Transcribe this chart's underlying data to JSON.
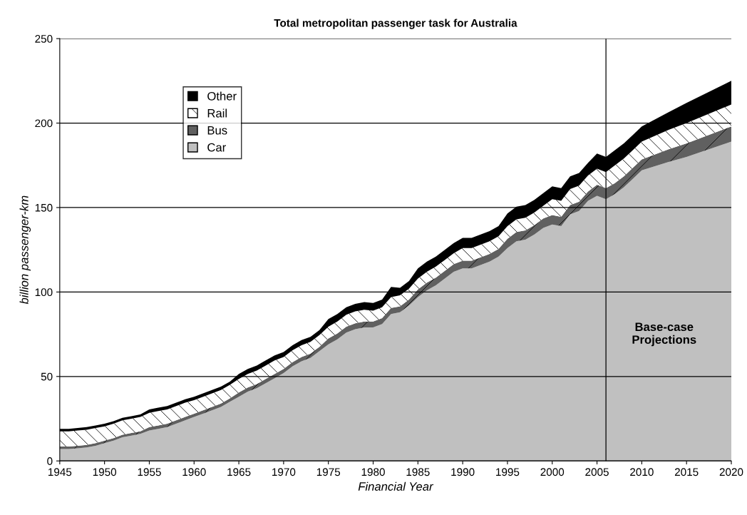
{
  "chart_data": {
    "type": "area",
    "title": "Total metropolitan passenger task for Australia",
    "xlabel": "Financial Year",
    "ylabel": "billion passenger-km",
    "stacked": true,
    "x": [
      1945,
      1946,
      1947,
      1948,
      1949,
      1950,
      1951,
      1952,
      1953,
      1954,
      1955,
      1956,
      1957,
      1958,
      1959,
      1960,
      1961,
      1962,
      1963,
      1964,
      1965,
      1966,
      1967,
      1968,
      1969,
      1970,
      1971,
      1972,
      1973,
      1974,
      1975,
      1976,
      1977,
      1978,
      1979,
      1980,
      1981,
      1982,
      1983,
      1984,
      1985,
      1986,
      1987,
      1988,
      1989,
      1990,
      1991,
      1992,
      1993,
      1994,
      1995,
      1996,
      1997,
      1998,
      1999,
      2000,
      2001,
      2002,
      2003,
      2004,
      2005,
      2006,
      2007,
      2008,
      2009,
      2010,
      2013,
      2015,
      2020
    ],
    "series": [
      {
        "name": "Car",
        "color": "#c0c0c0",
        "values": [
          7,
          7,
          7.5,
          8,
          9,
          10.5,
          12,
          14,
          15,
          16,
          18,
          19,
          20,
          22,
          24,
          26,
          28,
          30,
          32,
          35,
          38,
          41,
          43,
          46,
          49,
          52,
          56,
          59,
          61,
          65,
          69,
          72,
          76,
          78,
          79,
          79,
          81,
          87,
          88,
          92,
          97,
          101,
          104,
          108,
          112,
          114,
          114,
          116,
          118,
          121,
          126,
          130,
          131,
          134,
          138,
          140,
          139,
          146,
          148,
          154,
          157,
          155,
          158,
          162,
          167,
          172,
          177,
          180,
          189
        ]
      },
      {
        "name": "Bus",
        "color": "#606060",
        "values": [
          1.5,
          1.5,
          1.5,
          1.5,
          1.5,
          1.5,
          1.5,
          1.5,
          1.5,
          1.5,
          2,
          2,
          2,
          2,
          2,
          2,
          2,
          2,
          2,
          2,
          2.5,
          2.5,
          2.5,
          2.5,
          2.5,
          2.5,
          2.5,
          2.5,
          2.5,
          2.5,
          3.5,
          3.5,
          3.5,
          3.5,
          3.5,
          3.5,
          3.5,
          3.5,
          3.5,
          3.5,
          4.5,
          4.5,
          4.5,
          4.5,
          4.5,
          4.5,
          4.5,
          4.5,
          4.5,
          4.5,
          5.5,
          5.5,
          5.5,
          5.5,
          5.5,
          5.5,
          5.5,
          5.5,
          5.5,
          5.5,
          6.5,
          6.5,
          6.5,
          6.5,
          6.5,
          6.5,
          7.5,
          8,
          9
        ]
      },
      {
        "name": "Rail",
        "color": "#ffffff",
        "values": [
          9,
          9,
          9,
          9,
          9,
          8.5,
          8.5,
          8.5,
          8.5,
          8.5,
          8.5,
          8.5,
          8.5,
          8.5,
          8.5,
          8,
          8,
          8,
          8,
          8,
          8,
          8,
          8,
          8,
          8,
          7,
          7,
          7,
          7,
          7,
          7,
          7,
          7,
          7,
          7,
          6.5,
          6.5,
          6.5,
          6.5,
          6.5,
          6.5,
          6.5,
          6.5,
          6.5,
          6.5,
          7.5,
          7.5,
          7.5,
          7.5,
          7.5,
          7.5,
          7.5,
          7.5,
          7.5,
          7.5,
          9.5,
          9.5,
          9.5,
          9.5,
          9.5,
          9.5,
          9.5,
          10.5,
          10.5,
          10.5,
          10.5,
          11.5,
          12,
          13
        ]
      },
      {
        "name": "Other",
        "color": "#000000",
        "values": [
          1.5,
          1.5,
          1.5,
          1.5,
          1.5,
          1.5,
          1.5,
          1.5,
          1.5,
          1.5,
          2,
          2,
          2,
          2,
          2,
          2,
          2,
          2,
          2,
          2,
          3,
          3,
          3,
          3,
          3,
          3,
          3,
          3,
          3,
          3,
          4.5,
          4.5,
          4.5,
          4.5,
          4.5,
          4.5,
          4.5,
          6,
          4.5,
          4.5,
          6,
          6,
          6,
          6,
          6,
          6,
          6,
          6,
          6,
          6,
          7.5,
          7.5,
          7.5,
          7.5,
          7.5,
          7.5,
          7.5,
          7.5,
          7.5,
          7.5,
          9,
          9,
          9,
          9,
          9,
          9,
          10.5,
          12,
          14
        ]
      }
    ],
    "xlim": [
      1945,
      2020
    ],
    "xticks": [
      1945,
      1950,
      1955,
      1960,
      1965,
      1970,
      1975,
      1980,
      1985,
      1990,
      1995,
      2000,
      2005,
      2010,
      2015,
      2020
    ],
    "ylim": [
      0,
      250
    ],
    "yticks": [
      0,
      50,
      100,
      150,
      200,
      250
    ],
    "grid": "y",
    "legend": "top left",
    "ref_lines": [
      {
        "axis": "x",
        "value": 2006,
        "color": "#000000"
      }
    ],
    "annotations": [
      "Base-case\nProjections"
    ]
  }
}
